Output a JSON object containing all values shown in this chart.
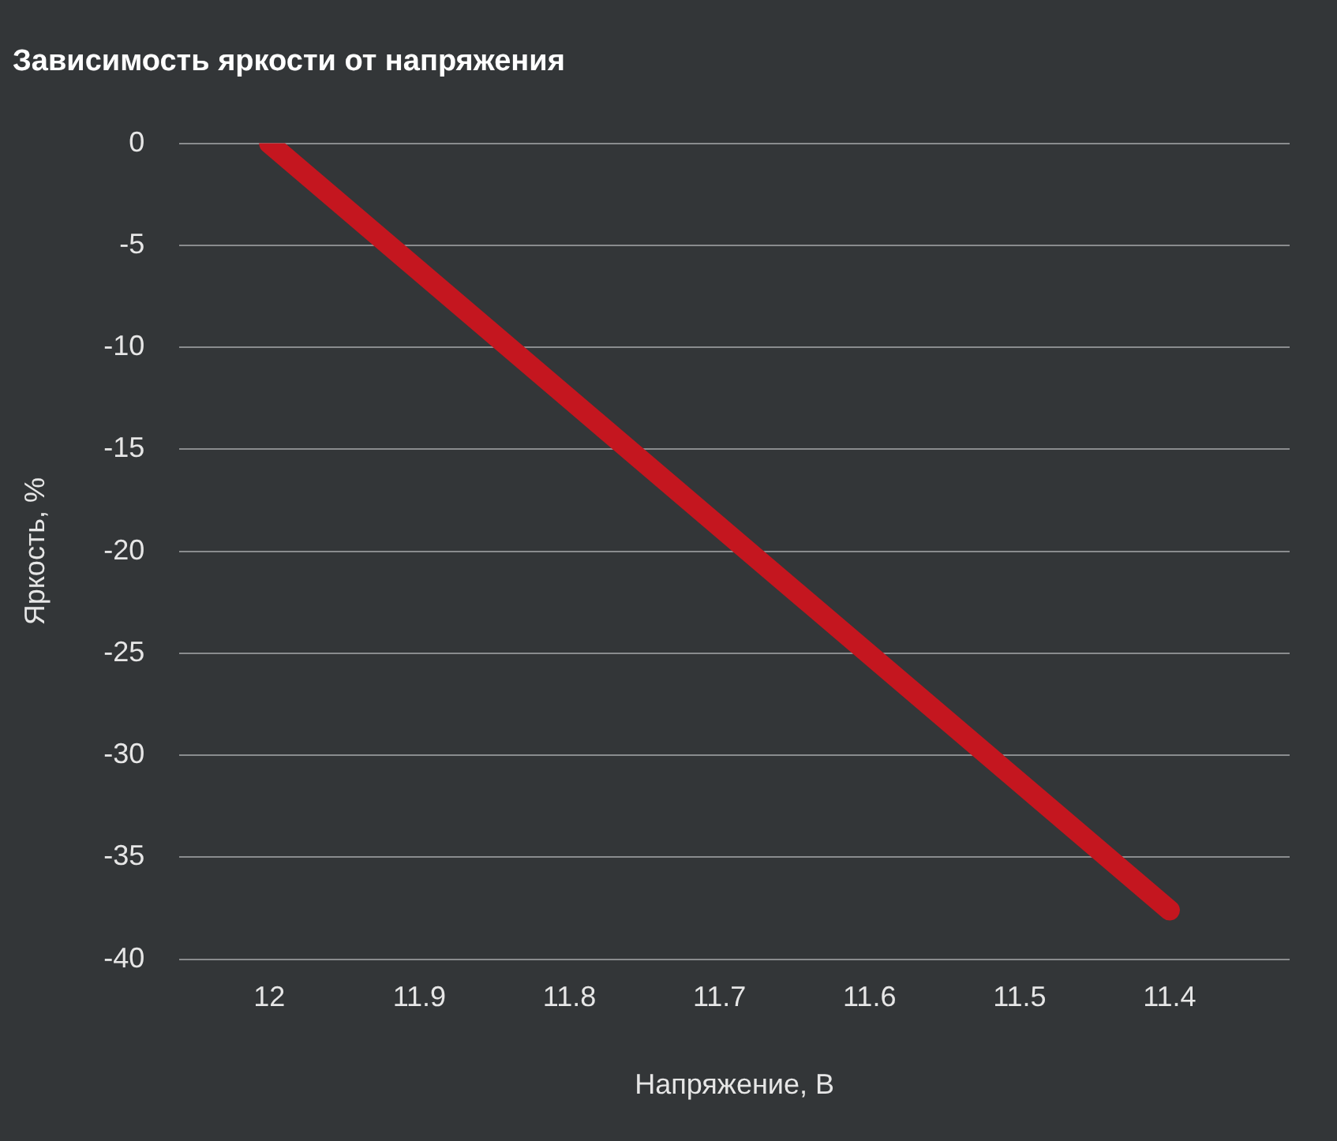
{
  "chart_data": {
    "type": "line",
    "title": "Зависимость яркости от напряжения",
    "xlabel": "Напряжение, В",
    "ylabel": "Яркость, %",
    "x": [
      12,
      11.4
    ],
    "series": [
      {
        "color": "#c4161f",
        "values": [
          0,
          -37.6
        ]
      }
    ],
    "xlim": [
      12.06,
      11.32
    ],
    "xticks": [
      {
        "value": 12,
        "label": "12"
      },
      11.9,
      11.8,
      11.7,
      11.6,
      11.5,
      11.4
    ],
    "ylim": [
      -40,
      0
    ],
    "yticks": [
      0,
      -5,
      -10,
      -15,
      -20,
      -25,
      -30,
      -35,
      -40
    ],
    "grid": "y",
    "legend": false,
    "marker": "none",
    "line_style": "solid"
  }
}
